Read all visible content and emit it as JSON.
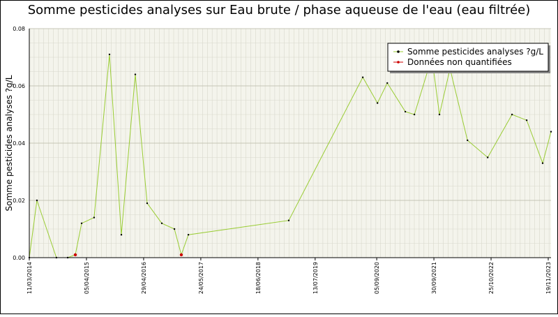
{
  "chart_data": {
    "type": "line",
    "title": "Somme pesticides analyses sur Eau brute / phase aqueuse de l'eau (eau filtrée)",
    "y_label": "Somme pesticides analyses ?g/L",
    "xlim": [
      "11/03/2014",
      "08/12/2023"
    ],
    "xticks": [
      "11/03/2014",
      "05/04/2015",
      "29/04/2016",
      "24/05/2017",
      "18/06/2018",
      "13/07/2019",
      "05/09/2020",
      "30/09/2021",
      "25/10/2022",
      "19/11/2023"
    ],
    "ylim": [
      0,
      0.08
    ],
    "yticks": [
      {
        "value": 0,
        "label": "0.00"
      },
      {
        "value": 0.02,
        "label": "0.02"
      },
      {
        "value": 0.04,
        "label": "0.04"
      },
      {
        "value": 0.06,
        "label": "0.06"
      },
      {
        "value": 0.08,
        "label": "0.08"
      }
    ],
    "grid": true,
    "legend": "top-right",
    "series": [
      {
        "name": "Somme pesticides analyses ?g/L",
        "color": "#99cc33",
        "marker_color": "#000000",
        "x": [
          "11/03/2014",
          "02/05/2014",
          "12/09/2014",
          "28/11/2014",
          "19/01/2015",
          "03/03/2015",
          "27/05/2015",
          "09/09/2015",
          "29/11/2015",
          "03/03/2016",
          "23/05/2016",
          "31/08/2016",
          "25/11/2016",
          "11/01/2017",
          "28/02/2017",
          "14/01/2019",
          "02/06/2020",
          "10/09/2020",
          "16/11/2020",
          "19/03/2021",
          "20/05/2021",
          "16/09/2021",
          "07/11/2021",
          "18/01/2022",
          "17/05/2022",
          "02/10/2022",
          "17/03/2023",
          "25/06/2023",
          "12/10/2023",
          "08/12/2023"
        ],
        "values": [
          0,
          0.02,
          0,
          0,
          0.001,
          0.012,
          0.014,
          0.071,
          0.008,
          0.064,
          0.019,
          0.012,
          0.01,
          0.001,
          0.008,
          0.013,
          0.063,
          0.054,
          0.061,
          0.051,
          0.05,
          0.07,
          0.05,
          0.066,
          0.041,
          0.035,
          0.05,
          0.048,
          0.033,
          0.044
        ]
      },
      {
        "name": "Données non quantifiées",
        "color": "#cc0000",
        "marker_color": "#cc0000",
        "x": [
          "19/01/2015",
          "11/01/2017"
        ],
        "values": [
          0.001,
          0.001
        ]
      }
    ]
  }
}
